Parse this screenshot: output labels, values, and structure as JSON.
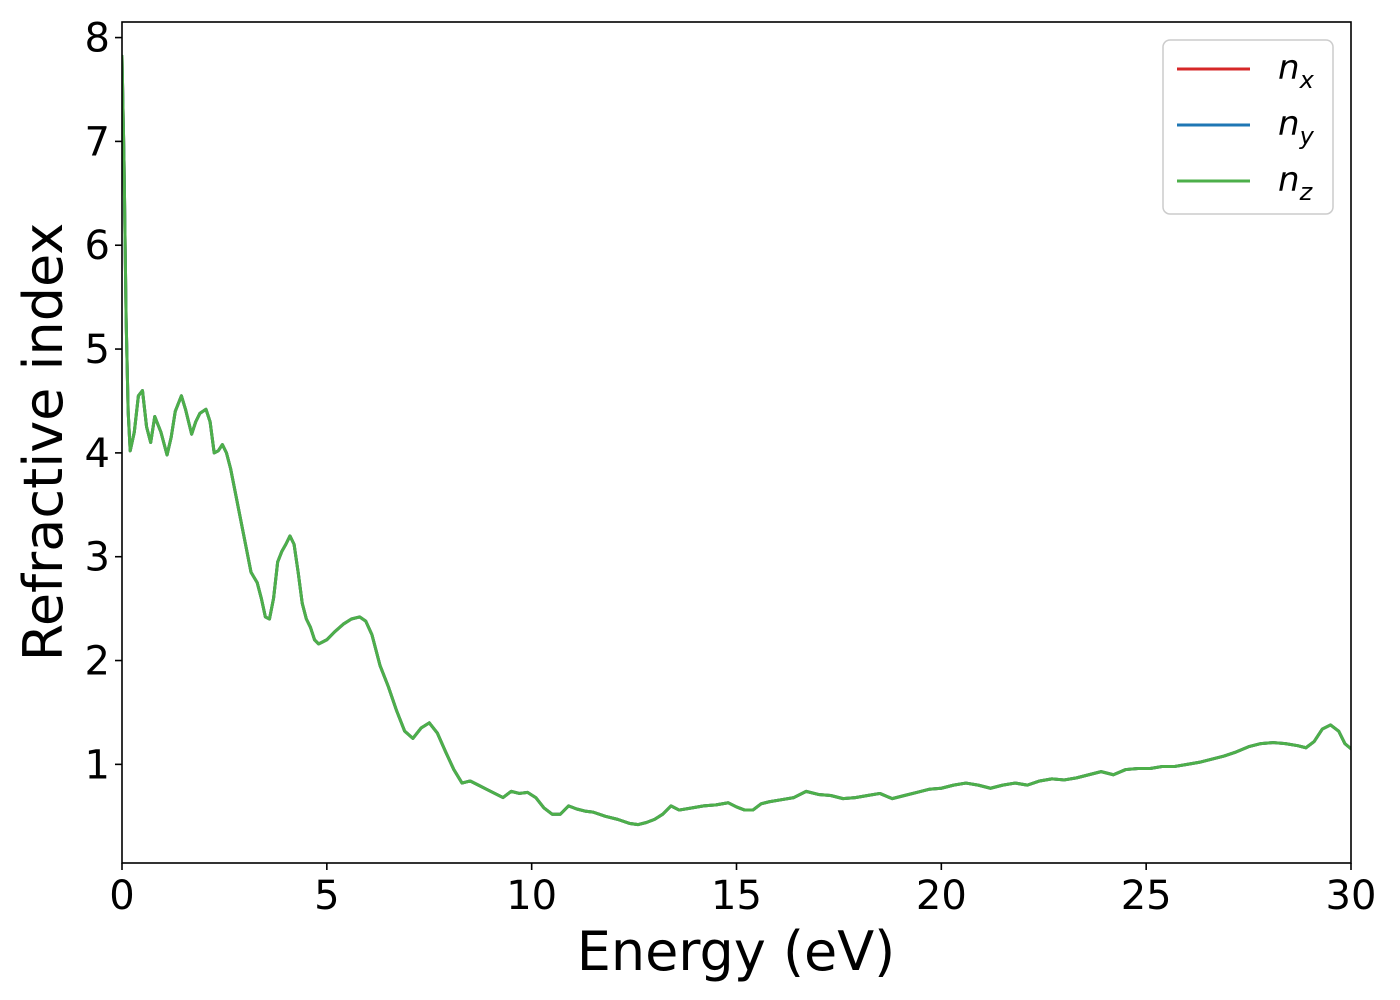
{
  "chart_data": {
    "type": "line",
    "title": "",
    "xlabel": "Energy (eV)",
    "ylabel": "Refractive index",
    "xlim": [
      0,
      30
    ],
    "ylim": [
      0.05,
      8.15
    ],
    "xticks": [
      0,
      5,
      10,
      15,
      20,
      25,
      30
    ],
    "yticks": [
      1,
      2,
      3,
      4,
      5,
      6,
      7,
      8
    ],
    "grid": false,
    "legend_placement": "top-right",
    "colors": {
      "n_x": "#d62728",
      "n_y": "#1f77b4",
      "n_z": "#4daf4a"
    },
    "legend": [
      {
        "base": "n",
        "sub": "x",
        "color": "#d62728"
      },
      {
        "base": "n",
        "sub": "y",
        "color": "#1f77b4"
      },
      {
        "base": "n",
        "sub": "z",
        "color": "#4daf4a"
      }
    ],
    "x": [
      0,
      0.05,
      0.1,
      0.15,
      0.2,
      0.3,
      0.4,
      0.5,
      0.6,
      0.7,
      0.8,
      0.95,
      1.1,
      1.2,
      1.3,
      1.45,
      1.55,
      1.7,
      1.8,
      1.9,
      2.05,
      2.15,
      2.25,
      2.35,
      2.45,
      2.55,
      2.65,
      2.8,
      3.0,
      3.15,
      3.3,
      3.4,
      3.5,
      3.6,
      3.7,
      3.8,
      3.9,
      4.0,
      4.1,
      4.2,
      4.3,
      4.4,
      4.5,
      4.6,
      4.7,
      4.8,
      4.9,
      5.0,
      5.2,
      5.4,
      5.6,
      5.8,
      5.95,
      6.1,
      6.2,
      6.3,
      6.5,
      6.7,
      6.9,
      7.1,
      7.3,
      7.5,
      7.7,
      7.9,
      8.1,
      8.3,
      8.5,
      8.7,
      8.9,
      9.1,
      9.3,
      9.5,
      9.7,
      9.9,
      10.1,
      10.3,
      10.5,
      10.7,
      10.9,
      11.1,
      11.3,
      11.5,
      11.8,
      12.1,
      12.4,
      12.6,
      12.8,
      13.0,
      13.2,
      13.4,
      13.6,
      13.9,
      14.2,
      14.5,
      14.8,
      15.0,
      15.2,
      15.4,
      15.6,
      15.8,
      16.1,
      16.4,
      16.7,
      17.0,
      17.3,
      17.6,
      17.9,
      18.2,
      18.5,
      18.8,
      19.1,
      19.4,
      19.7,
      20.0,
      20.3,
      20.6,
      20.9,
      21.2,
      21.5,
      21.8,
      22.1,
      22.4,
      22.7,
      23.0,
      23.3,
      23.6,
      23.9,
      24.2,
      24.5,
      24.8,
      25.1,
      25.4,
      25.7,
      26.0,
      26.3,
      26.6,
      26.9,
      27.2,
      27.5,
      27.8,
      28.1,
      28.4,
      28.7,
      28.9,
      29.1,
      29.3,
      29.5,
      29.7,
      29.85,
      30.0
    ],
    "series": [
      {
        "name": "n_x",
        "values": [
          7.82,
          6.8,
          5.3,
          4.4,
          4.02,
          4.2,
          4.55,
          4.6,
          4.25,
          4.1,
          4.35,
          4.2,
          3.98,
          4.15,
          4.4,
          4.55,
          4.42,
          4.18,
          4.3,
          4.38,
          4.42,
          4.3,
          4.0,
          4.02,
          4.08,
          4.0,
          3.85,
          3.55,
          3.15,
          2.85,
          2.75,
          2.6,
          2.42,
          2.4,
          2.6,
          2.95,
          3.05,
          3.12,
          3.2,
          3.12,
          2.85,
          2.55,
          2.4,
          2.32,
          2.2,
          2.16,
          2.18,
          2.2,
          2.28,
          2.35,
          2.4,
          2.42,
          2.38,
          2.25,
          2.1,
          1.95,
          1.75,
          1.52,
          1.32,
          1.25,
          1.35,
          1.4,
          1.3,
          1.12,
          0.95,
          0.82,
          0.84,
          0.8,
          0.76,
          0.72,
          0.68,
          0.74,
          0.72,
          0.73,
          0.68,
          0.58,
          0.52,
          0.52,
          0.6,
          0.57,
          0.55,
          0.54,
          0.5,
          0.47,
          0.43,
          0.42,
          0.44,
          0.47,
          0.52,
          0.6,
          0.56,
          0.58,
          0.6,
          0.61,
          0.63,
          0.59,
          0.56,
          0.56,
          0.62,
          0.64,
          0.66,
          0.68,
          0.74,
          0.71,
          0.7,
          0.67,
          0.68,
          0.7,
          0.72,
          0.67,
          0.7,
          0.73,
          0.76,
          0.77,
          0.8,
          0.82,
          0.8,
          0.77,
          0.8,
          0.82,
          0.8,
          0.84,
          0.86,
          0.85,
          0.87,
          0.9,
          0.93,
          0.9,
          0.95,
          0.96,
          0.96,
          0.98,
          0.98,
          1.0,
          1.02,
          1.05,
          1.08,
          1.12,
          1.17,
          1.2,
          1.21,
          1.2,
          1.18,
          1.16,
          1.22,
          1.34,
          1.38,
          1.32,
          1.2,
          1.15
        ]
      },
      {
        "name": "n_y",
        "values": [
          7.82,
          6.8,
          5.3,
          4.4,
          4.02,
          4.2,
          4.55,
          4.6,
          4.25,
          4.1,
          4.35,
          4.2,
          3.98,
          4.15,
          4.4,
          4.55,
          4.42,
          4.18,
          4.3,
          4.38,
          4.42,
          4.3,
          4.0,
          4.02,
          4.08,
          4.0,
          3.85,
          3.55,
          3.15,
          2.85,
          2.75,
          2.6,
          2.42,
          2.4,
          2.6,
          2.95,
          3.05,
          3.12,
          3.2,
          3.12,
          2.85,
          2.55,
          2.4,
          2.32,
          2.2,
          2.16,
          2.18,
          2.2,
          2.28,
          2.35,
          2.4,
          2.42,
          2.38,
          2.25,
          2.1,
          1.95,
          1.75,
          1.52,
          1.32,
          1.25,
          1.35,
          1.4,
          1.3,
          1.12,
          0.95,
          0.82,
          0.84,
          0.8,
          0.76,
          0.72,
          0.68,
          0.74,
          0.72,
          0.73,
          0.68,
          0.58,
          0.52,
          0.52,
          0.6,
          0.57,
          0.55,
          0.54,
          0.5,
          0.47,
          0.43,
          0.42,
          0.44,
          0.47,
          0.52,
          0.6,
          0.56,
          0.58,
          0.6,
          0.61,
          0.63,
          0.59,
          0.56,
          0.56,
          0.62,
          0.64,
          0.66,
          0.68,
          0.74,
          0.71,
          0.7,
          0.67,
          0.68,
          0.7,
          0.72,
          0.67,
          0.7,
          0.73,
          0.76,
          0.77,
          0.8,
          0.82,
          0.8,
          0.77,
          0.8,
          0.82,
          0.8,
          0.84,
          0.86,
          0.85,
          0.87,
          0.9,
          0.93,
          0.9,
          0.95,
          0.96,
          0.96,
          0.98,
          0.98,
          1.0,
          1.02,
          1.05,
          1.08,
          1.12,
          1.17,
          1.2,
          1.21,
          1.2,
          1.18,
          1.16,
          1.22,
          1.34,
          1.38,
          1.32,
          1.2,
          1.15
        ]
      },
      {
        "name": "n_z",
        "values": [
          7.82,
          6.8,
          5.3,
          4.4,
          4.02,
          4.2,
          4.55,
          4.6,
          4.25,
          4.1,
          4.35,
          4.2,
          3.98,
          4.15,
          4.4,
          4.55,
          4.42,
          4.18,
          4.3,
          4.38,
          4.42,
          4.3,
          4.0,
          4.02,
          4.08,
          4.0,
          3.85,
          3.55,
          3.15,
          2.85,
          2.75,
          2.6,
          2.42,
          2.4,
          2.6,
          2.95,
          3.05,
          3.12,
          3.2,
          3.12,
          2.85,
          2.55,
          2.4,
          2.32,
          2.2,
          2.16,
          2.18,
          2.2,
          2.28,
          2.35,
          2.4,
          2.42,
          2.38,
          2.25,
          2.1,
          1.95,
          1.75,
          1.52,
          1.32,
          1.25,
          1.35,
          1.4,
          1.3,
          1.12,
          0.95,
          0.82,
          0.84,
          0.8,
          0.76,
          0.72,
          0.68,
          0.74,
          0.72,
          0.73,
          0.68,
          0.58,
          0.52,
          0.52,
          0.6,
          0.57,
          0.55,
          0.54,
          0.5,
          0.47,
          0.43,
          0.42,
          0.44,
          0.47,
          0.52,
          0.6,
          0.56,
          0.58,
          0.6,
          0.61,
          0.63,
          0.59,
          0.56,
          0.56,
          0.62,
          0.64,
          0.66,
          0.68,
          0.74,
          0.71,
          0.7,
          0.67,
          0.68,
          0.7,
          0.72,
          0.67,
          0.7,
          0.73,
          0.76,
          0.77,
          0.8,
          0.82,
          0.8,
          0.77,
          0.8,
          0.82,
          0.8,
          0.84,
          0.86,
          0.85,
          0.87,
          0.9,
          0.93,
          0.9,
          0.95,
          0.96,
          0.96,
          0.98,
          0.98,
          1.0,
          1.02,
          1.05,
          1.08,
          1.12,
          1.17,
          1.2,
          1.21,
          1.2,
          1.18,
          1.16,
          1.22,
          1.34,
          1.38,
          1.32,
          1.2,
          1.15
        ]
      }
    ]
  }
}
